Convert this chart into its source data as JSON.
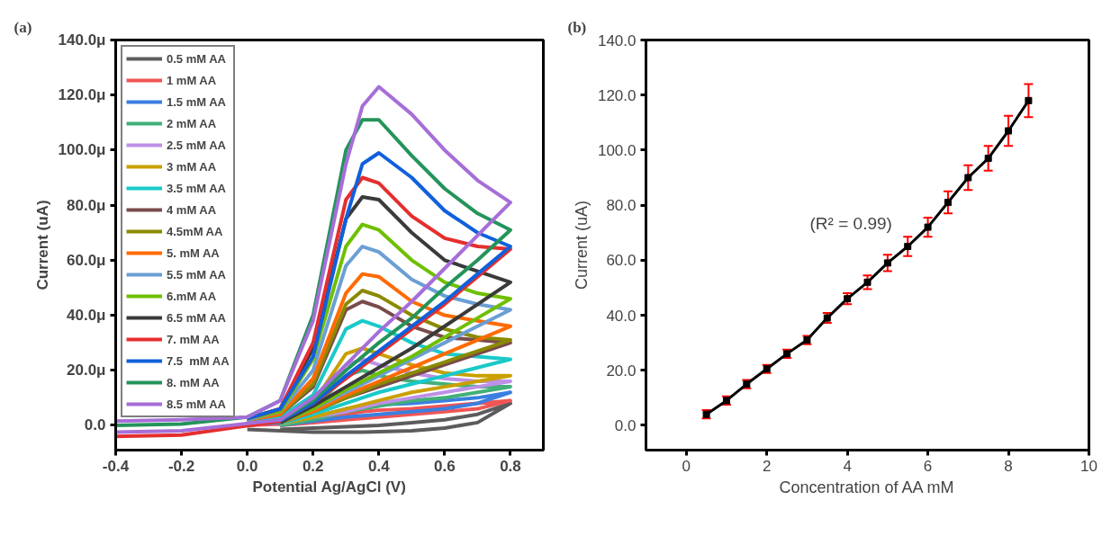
{
  "chart_data": [
    {
      "type": "line",
      "title": "(a)",
      "xlabel": "Potential Ag/AgCl (V)",
      "ylabel": "Current (uA)",
      "xlim": [
        -0.4,
        0.9
      ],
      "ylim": [
        -9,
        140
      ],
      "xticks": [
        {
          "value": -0.4,
          "label": "-0.4"
        },
        {
          "value": -0.2,
          "label": "-0.2"
        },
        {
          "value": 0,
          "label": "0.0"
        },
        {
          "value": 0.2,
          "label": "0.2"
        },
        {
          "value": 0.4,
          "label": "0.4"
        },
        {
          "value": 0.6,
          "label": "0.6"
        },
        {
          "value": 0.8,
          "label": "0.8"
        }
      ],
      "yticks": [
        {
          "value": 0,
          "label": "0.0"
        },
        {
          "value": 20,
          "label": "20.0μ"
        },
        {
          "value": 40,
          "label": "40.0μ"
        },
        {
          "value": 60,
          "label": "60.0μ"
        },
        {
          "value": 80,
          "label": "80.0μ"
        },
        {
          "value": 100,
          "label": "100.0μ"
        },
        {
          "value": 120,
          "label": "120.0μ"
        },
        {
          "value": 140,
          "label": "140.0μ"
        }
      ],
      "grid": false,
      "legend": "top left",
      "x": [
        -0.4,
        -0.2,
        0,
        0.1,
        0.2,
        0.3,
        0.35,
        0.4,
        0.5,
        0.6,
        0.7,
        0.8,
        0.7,
        0.6,
        0.5,
        0.4,
        0.3,
        0.2,
        0.1,
        -0.2,
        -0.4
      ],
      "series": [
        {
          "name": "0.5 mM AA",
          "color": "#5c5c5c",
          "x": [
            0,
            0.1,
            0.2,
            0.3,
            0.35,
            0.4,
            0.5,
            0.6,
            0.7,
            0.8,
            0.7,
            0.6,
            0.5,
            0.4,
            0.3,
            0.2,
            0.1
          ],
          "values": [
            -1.5,
            -2,
            -2.5,
            -2.5,
            -2.5,
            -2.3,
            -2,
            -1,
            1,
            8,
            4,
            2,
            1,
            0,
            -0.5,
            -1,
            -1.5
          ]
        },
        {
          "name": "1 mM AA",
          "color": "#f05555",
          "x": [
            0,
            0.1,
            0.2,
            0.3,
            0.35,
            0.4,
            0.5,
            0.6,
            0.7,
            0.8,
            0.7,
            0.6,
            0.5,
            0.4,
            0.3,
            0.2,
            0.1
          ],
          "values": [
            0,
            0.5,
            2,
            4,
            5,
            5.5,
            6,
            7,
            8,
            9,
            6,
            5,
            4,
            3,
            2,
            1,
            0
          ]
        },
        {
          "name": "1.5 mM AA",
          "color": "#3a7fe0",
          "x": [
            0,
            0.1,
            0.2,
            0.3,
            0.35,
            0.4,
            0.5,
            0.6,
            0.7,
            0.8,
            0.7,
            0.6,
            0.5,
            0.4,
            0.3,
            0.2,
            0.1
          ],
          "values": [
            0.5,
            1,
            3,
            6,
            7,
            7.5,
            8,
            9,
            10,
            12,
            8,
            6,
            5,
            4,
            3,
            1.5,
            0
          ]
        },
        {
          "name": "2 mM AA",
          "color": "#42b078",
          "x": [
            0,
            0.1,
            0.2,
            0.3,
            0.35,
            0.4,
            0.5,
            0.6,
            0.7,
            0.8,
            0.7,
            0.6,
            0.5,
            0.4,
            0.3,
            0.2,
            0.1
          ],
          "values": [
            1,
            2,
            6,
            18,
            20,
            18,
            16,
            15,
            14,
            14,
            12,
            10,
            9,
            7,
            5,
            2,
            0
          ]
        },
        {
          "name": "2.5 mM AA",
          "color": "#bd90e6",
          "x": [
            0,
            0.1,
            0.2,
            0.3,
            0.35,
            0.4,
            0.5,
            0.6,
            0.7,
            0.8,
            0.7,
            0.6,
            0.5,
            0.4,
            0.3,
            0.2,
            0.1
          ],
          "values": [
            1.5,
            2,
            7,
            22,
            24,
            22,
            19,
            17,
            16,
            16,
            14,
            12,
            10,
            8,
            5,
            3,
            0.5
          ]
        },
        {
          "name": "3 mM AA",
          "color": "#c9a000",
          "x": [
            0,
            0.1,
            0.2,
            0.3,
            0.35,
            0.4,
            0.5,
            0.6,
            0.7,
            0.8,
            0.7,
            0.6,
            0.5,
            0.4,
            0.3,
            0.2,
            0.1
          ],
          "values": [
            1.5,
            2.5,
            8,
            26,
            28,
            26,
            22,
            19,
            18,
            18,
            16,
            14,
            12,
            9,
            6,
            3,
            0.5
          ]
        },
        {
          "name": "3.5 mM AA",
          "color": "#19c9c9",
          "x": [
            0,
            0.1,
            0.2,
            0.3,
            0.35,
            0.4,
            0.5,
            0.6,
            0.7,
            0.8,
            0.7,
            0.6,
            0.5,
            0.4,
            0.3,
            0.2,
            0.1
          ],
          "values": [
            1.5,
            3,
            11,
            35,
            38,
            36,
            30,
            26,
            25,
            24,
            21,
            18,
            15,
            12,
            8,
            4,
            0.5
          ]
        },
        {
          "name": "4 mM AA",
          "color": "#7a4b4b",
          "x": [
            0,
            0.1,
            0.2,
            0.3,
            0.35,
            0.4,
            0.5,
            0.6,
            0.7,
            0.8,
            0.7,
            0.6,
            0.5,
            0.4,
            0.3,
            0.2,
            0.1
          ],
          "values": [
            2,
            4,
            14,
            42,
            45,
            43,
            36,
            32,
            31,
            30,
            26,
            22,
            18,
            14,
            10,
            5,
            1
          ]
        },
        {
          "name": "4.5mM AA",
          "color": "#8a8a00",
          "x": [
            0,
            0.1,
            0.2,
            0.3,
            0.35,
            0.4,
            0.5,
            0.6,
            0.7,
            0.8,
            0.7,
            0.6,
            0.5,
            0.4,
            0.3,
            0.2,
            0.1
          ],
          "values": [
            2,
            4,
            15,
            44,
            49,
            47,
            40,
            35,
            32,
            31,
            27,
            23,
            19,
            15,
            10,
            5,
            1
          ]
        },
        {
          "name": "5. mM AA",
          "color": "#ff6a00",
          "x": [
            0,
            0.1,
            0.2,
            0.3,
            0.35,
            0.4,
            0.5,
            0.6,
            0.7,
            0.8,
            0.7,
            0.6,
            0.5,
            0.4,
            0.3,
            0.2,
            0.1
          ],
          "values": [
            2,
            4,
            17,
            48,
            55,
            54,
            45,
            40,
            38,
            36,
            31,
            26,
            21,
            16,
            11,
            5,
            1
          ]
        },
        {
          "name": "5.5 mM AA",
          "color": "#6a9fd4",
          "x": [
            0,
            0.1,
            0.2,
            0.3,
            0.35,
            0.4,
            0.5,
            0.6,
            0.7,
            0.8,
            0.7,
            0.6,
            0.5,
            0.4,
            0.3,
            0.2,
            0.1
          ],
          "values": [
            2,
            5,
            20,
            58,
            65,
            63,
            53,
            47,
            44,
            42,
            36,
            30,
            24,
            18,
            12,
            6,
            1
          ]
        },
        {
          "name": "6.mM AA",
          "color": "#6fbf00",
          "x": [
            0,
            0.1,
            0.2,
            0.3,
            0.35,
            0.4,
            0.5,
            0.6,
            0.7,
            0.8,
            0.7,
            0.6,
            0.5,
            0.4,
            0.3,
            0.2,
            0.1
          ],
          "values": [
            2.5,
            5,
            24,
            65,
            73,
            71,
            60,
            52,
            48,
            46,
            39,
            32,
            25,
            19,
            13,
            6,
            1
          ]
        },
        {
          "name": "6.5 mM AA",
          "color": "#3a3a3a",
          "x": [
            0,
            0.1,
            0.2,
            0.3,
            0.35,
            0.4,
            0.5,
            0.6,
            0.7,
            0.8,
            0.7,
            0.6,
            0.5,
            0.4,
            0.3,
            0.2,
            0.1
          ],
          "values": [
            2.5,
            6,
            28,
            75,
            83,
            82,
            70,
            60,
            56,
            52,
            44,
            36,
            28,
            21,
            14,
            7,
            1
          ]
        },
        {
          "name": "7. mM AA",
          "color": "#e52e2e",
          "x": [
            0,
            0.1,
            0.2,
            0.3,
            0.35,
            0.4,
            0.5,
            0.6,
            0.7,
            0.8,
            0.7,
            0.6,
            0.5,
            0.4,
            0.3,
            0.2,
            0.1,
            -0.2,
            -0.4
          ],
          "values": [
            2.5,
            6,
            30,
            82,
            90,
            88,
            76,
            68,
            65,
            64,
            54,
            44,
            35,
            26,
            17,
            8,
            1.5,
            -3.5,
            -4
          ]
        },
        {
          "name": "7.5  mM AA",
          "color": "#1060dc",
          "x": [
            0,
            0.1,
            0.2,
            0.3,
            0.35,
            0.4,
            0.5,
            0.6,
            0.7,
            0.8,
            0.7,
            0.6,
            0.5,
            0.4,
            0.3,
            0.2,
            0.1
          ],
          "values": [
            2.5,
            6,
            25,
            75,
            95,
            99,
            90,
            78,
            70,
            65,
            55,
            45,
            36,
            27,
            18,
            8,
            1.5
          ]
        },
        {
          "name": "8. mM AA",
          "color": "#24945a",
          "x": [
            -0.4,
            -0.2,
            0,
            0.1,
            0.2,
            0.3,
            0.35,
            0.4,
            0.5,
            0.6,
            0.7,
            0.8,
            0.7,
            0.6,
            0.5,
            0.4,
            0.3,
            0.2,
            0.1
          ],
          "values": [
            0,
            0.5,
            3,
            9,
            40,
            100,
            111,
            111,
            98,
            86,
            77,
            71,
            60,
            50,
            39,
            30,
            20,
            9,
            2
          ]
        },
        {
          "name": "8.5 mM AA",
          "color": "#a66ed8",
          "values": [
            1.5,
            2,
            3,
            9,
            38,
            95,
            116,
            123,
            113,
            100,
            89,
            81,
            69,
            57,
            45,
            34,
            22,
            10,
            2,
            -2,
            -2.5
          ]
        }
      ]
    },
    {
      "type": "line",
      "title": "(b)",
      "xlabel": "Concentration of AA mM",
      "ylabel": "Current (uA)",
      "xlim": [
        -1,
        10
      ],
      "ylim": [
        -9,
        140
      ],
      "xticks": [
        0,
        2,
        4,
        6,
        8,
        10
      ],
      "yticks": [
        {
          "value": 0,
          "label": "0.0"
        },
        {
          "value": 20,
          "label": "20.0"
        },
        {
          "value": 40,
          "label": "40.0"
        },
        {
          "value": 60,
          "label": "60.0"
        },
        {
          "value": 80,
          "label": "80.0"
        },
        {
          "value": 100,
          "label": "100.0"
        },
        {
          "value": 120,
          "label": "120.0"
        },
        {
          "value": 140,
          "label": "140.0"
        }
      ],
      "grid": false,
      "marker": "square",
      "annotations": [
        "(R² = 0.99)"
      ],
      "x": [
        0.5,
        1,
        1.5,
        2,
        2.5,
        3,
        3.5,
        4,
        4.5,
        5,
        5.5,
        6,
        6.5,
        7,
        7.5,
        8,
        8.5
      ],
      "series": [
        {
          "color": "#000000",
          "values": [
            4,
            9,
            15,
            20.5,
            26,
            31,
            39,
            46,
            52,
            59,
            65,
            72,
            81,
            90,
            97,
            107,
            118
          ],
          "errors": [
            1.5,
            1.5,
            1.5,
            1.5,
            1.5,
            1.5,
            1.8,
            2,
            2.5,
            3,
            3.5,
            3.5,
            4,
            4.5,
            4.5,
            5.5,
            6
          ]
        }
      ]
    }
  ]
}
